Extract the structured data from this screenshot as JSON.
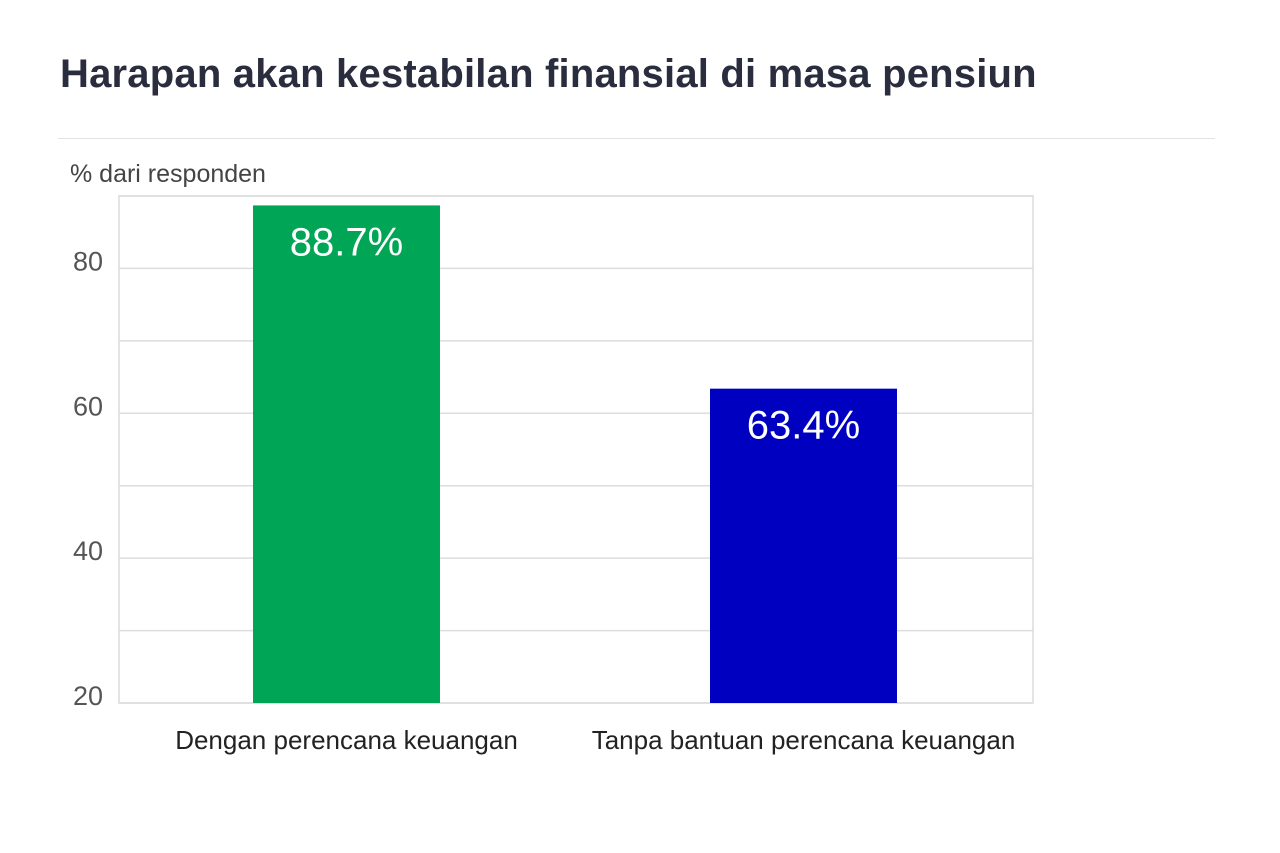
{
  "page": {
    "title": "Harapan akan kestabilan finansial di masa pensiun"
  },
  "chart_data": {
    "type": "bar",
    "title": "Harapan akan kestabilan finansial di masa pensiun",
    "ylabel": "% dari responden",
    "xlabel": "",
    "categories": [
      "Dengan perencana keuangan",
      "Tanpa bantuan perencana keuangan"
    ],
    "values": [
      88.7,
      63.4
    ],
    "data_labels": [
      "88.7%",
      "63.4%"
    ],
    "colors": [
      "#00a555",
      "#0000c0"
    ],
    "ylim": [
      20,
      90
    ],
    "yticks": [
      20,
      40,
      60,
      80
    ],
    "gridlines": [
      20,
      30,
      40,
      50,
      60,
      70,
      80,
      90
    ],
    "grid": true,
    "legend": "none"
  }
}
